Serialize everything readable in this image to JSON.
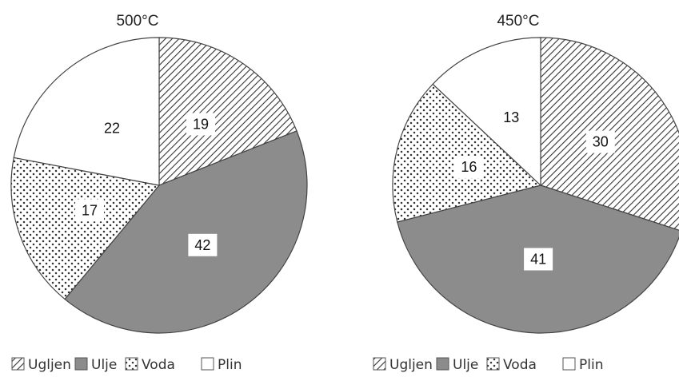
{
  "chart_data": [
    {
      "type": "pie",
      "title": "500°C",
      "slices": [
        {
          "name": "Ugljen",
          "value": 19
        },
        {
          "name": "Ulje",
          "value": 42
        },
        {
          "name": "Voda",
          "value": 17
        },
        {
          "name": "Plin",
          "value": 22
        }
      ],
      "legend": [
        "Ugljen",
        "Ulje",
        "Voda",
        "Plin"
      ],
      "legend_placement": "bottom"
    },
    {
      "type": "pie",
      "title": "450°C",
      "slices": [
        {
          "name": "Ugljen",
          "value": 30
        },
        {
          "name": "Ulje",
          "value": 41
        },
        {
          "name": "Voda",
          "value": 16
        },
        {
          "name": "Plin",
          "value": 13
        }
      ],
      "legend": [
        "Ugljen",
        "Ulje",
        "Voda",
        "Plin"
      ],
      "legend_placement": "bottom"
    }
  ],
  "styles": {
    "Ugljen": {
      "fill": "hatch",
      "color": "#333333"
    },
    "Ulje": {
      "fill": "solid",
      "color": "#8c8c8c"
    },
    "Voda": {
      "fill": "dots",
      "color": "#333333"
    },
    "Plin": {
      "fill": "white",
      "color": "#ffffff"
    }
  }
}
